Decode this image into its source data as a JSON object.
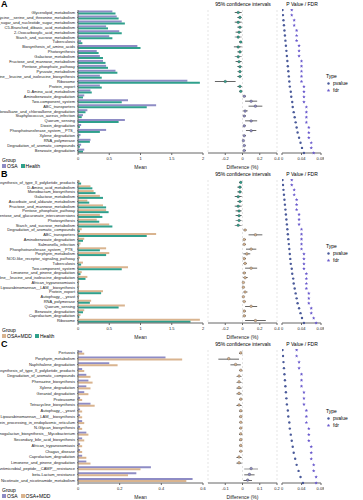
{
  "chart_data": [
    {
      "type": "bar",
      "orientation": "horizontal",
      "title": "A",
      "categories": [
        "Glycerolipid_metabolism",
        "Glycine__serine_and_threonine_metabolism",
        "Amino_sugar_and_nucleotide_sugar_metabolism",
        "C5-Branched_dibasic_acid_metabolism",
        "2-Oxocarboxylic_acid_metabolism",
        "Starch_and_sucrose_metabolism",
        "Tuberculosis",
        "Biosynthesis_of_amino_acids",
        "Photosynthesis",
        "Galactose_metabolism",
        "Fructose_and_mannose_metabolism",
        "Pentose_phosphate_pathway",
        "Pyruvate_metabolism",
        "Valine__leucine_and_isoleucine_biosynthesis",
        "Ribosome",
        "Protein_export",
        "D-Amino_acid_metabolism",
        "Aminobenzoate_degradation",
        "Two-component_system",
        "ABC_transporters",
        "Chloroalkane_and_chloroalkene_degradation",
        "Staphylococcus_aureus_infection",
        "Quorum_sensing",
        "Dioxin_degradation",
        "Phosphotransferase_system__PTS_",
        "Xylene_degradation",
        "RNA_polymerase",
        "Degradation_of_aromatic_compounds",
        "Benzoate_degradation"
      ],
      "series": [
        {
          "name": "OSA",
          "color": "#8e8cc5",
          "values": [
            0.55,
            0.62,
            0.7,
            0.45,
            0.66,
            0.5,
            0.05,
            0.95,
            0.3,
            0.35,
            0.4,
            0.45,
            0.6,
            0.35,
            1.75,
            0.35,
            0.2,
            0.1,
            0.8,
            1.25,
            0.15,
            0.08,
            0.75,
            0.05,
            0.45,
            0.04,
            0.2,
            0.05,
            0.1
          ]
        },
        {
          "name": "Health",
          "color": "#2fa08c",
          "values": [
            0.6,
            0.65,
            0.75,
            0.48,
            0.7,
            0.55,
            0.07,
            1.0,
            0.33,
            0.4,
            0.44,
            0.48,
            0.63,
            0.38,
            1.95,
            0.38,
            0.22,
            0.08,
            0.7,
            1.1,
            0.12,
            0.06,
            0.65,
            0.03,
            0.35,
            0.02,
            0.19,
            0.03,
            0.08
          ]
        }
      ],
      "xlabel": "Mean",
      "xlim": [
        0,
        2
      ],
      "xticks": [
        0,
        0.5,
        1,
        1.5,
        2
      ],
      "legend_title": "Group",
      "legend": "lower left",
      "ci_plot": {
        "type": "scatter",
        "title": "95% confidence intervals",
        "xlabel": "Difference (%)",
        "xlim": [
          -0.4,
          0.4
        ],
        "xticks": [
          -0.4,
          -0.2,
          0,
          0.2,
          0.4
        ],
        "grid": true,
        "values": [
          -0.05,
          -0.03,
          -0.05,
          -0.03,
          -0.04,
          -0.05,
          -0.02,
          -0.05,
          -0.03,
          -0.05,
          -0.04,
          -0.03,
          -0.03,
          -0.03,
          -0.2,
          -0.03,
          -0.02,
          0.02,
          0.1,
          0.15,
          0.03,
          0.02,
          0.1,
          0.02,
          0.1,
          0.02,
          0.01,
          0.02,
          0.02
        ],
        "ci_low": [
          -0.09,
          -0.06,
          -0.09,
          -0.06,
          -0.08,
          -0.09,
          -0.04,
          -0.1,
          -0.06,
          -0.09,
          -0.08,
          -0.06,
          -0.06,
          -0.06,
          -0.32,
          -0.06,
          -0.04,
          0.01,
          0.03,
          0.07,
          0.01,
          0.01,
          0.03,
          0.01,
          0.04,
          0.01,
          0.005,
          0.01,
          0.01
        ],
        "ci_high": [
          -0.01,
          -0.01,
          -0.01,
          -0.01,
          -0.01,
          -0.01,
          -0.01,
          -0.01,
          -0.01,
          -0.01,
          -0.01,
          -0.01,
          -0.01,
          -0.01,
          -0.08,
          -0.01,
          -0.01,
          0.04,
          0.17,
          0.23,
          0.06,
          0.04,
          0.17,
          0.04,
          0.16,
          0.04,
          0.02,
          0.04,
          0.04
        ]
      },
      "p_plot": {
        "type": "scatter",
        "title": "P Value / FDR",
        "xlim": [
          0,
          0.08
        ],
        "xticks": [
          0,
          0.04,
          0.08
        ],
        "legend_title": "Type",
        "series": [
          {
            "name": "pvalue",
            "color": "#4a5a9a",
            "marker": "circle",
            "values": [
              0.001,
              0.002,
              0.003,
              0.004,
              0.005,
              0.006,
              0.007,
              0.008,
              0.009,
              0.01,
              0.011,
              0.012,
              0.013,
              0.014,
              0.015,
              0.016,
              0.018,
              0.019,
              0.021,
              0.022,
              0.024,
              0.026,
              0.028,
              0.03,
              0.032,
              0.035,
              0.038,
              0.041,
              0.045
            ]
          },
          {
            "name": "fdr",
            "color": "#6a5acd",
            "marker": "star",
            "values": [
              0.02,
              0.02,
              0.025,
              0.025,
              0.03,
              0.03,
              0.03,
              0.035,
              0.035,
              0.035,
              0.04,
              0.04,
              0.04,
              0.04,
              0.04,
              0.045,
              0.045,
              0.045,
              0.045,
              0.05,
              0.05,
              0.05,
              0.05,
              0.055,
              0.055,
              0.055,
              0.06,
              0.06,
              0.065
            ]
          }
        ]
      }
    },
    {
      "type": "bar",
      "orientation": "horizontal",
      "title": "B",
      "categories": [
        "Biosynthesis_of_type_II_polyketide_products",
        "D-Amino_acid_metabolism",
        "Monobactam_biosynthesis",
        "Galactose_metabolism",
        "Ascorbate_and_aldarate_metabolism",
        "Fructose_and_mannose_metabolism",
        "Pentose_phosphate_pathway",
        "Pentose_and_glucuronate_interconversions",
        "Photosynthesis",
        "Starch_and_sucrose_metabolism",
        "Degradation_of_aromatic_compounds",
        "ABC_transporters",
        "Aminobenzoate_degradation",
        "Salmonella_infection",
        "Phosphotransferase_system__PTS_",
        "Porphyrin_metabolism",
        "NOD-like_receptor_signaling_pathway",
        "Tuberculosis",
        "Two-component_system",
        "Limonene_and_pinene_degradation",
        "Valine__leucine_and_isoleucine_degradation",
        "African_trypanosomiasis",
        "Lipoarabinomannan__LAM__biosynthesis",
        "Protein_export",
        "Autophagy_-_yeast",
        "RNA_polymerase",
        "Quorum_sensing",
        "Benzoate_degradation",
        "Caprolactam_degradation",
        "Ribosome"
      ],
      "series": [
        {
          "name": "OSA+MDD",
          "color": "#d9b48f",
          "values": [
            0.03,
            0.2,
            0.25,
            0.35,
            0.15,
            0.4,
            0.45,
            0.35,
            0.3,
            0.5,
            0.06,
            1.25,
            0.1,
            0.04,
            0.45,
            0.5,
            0.03,
            0.08,
            0.8,
            0.06,
            0.15,
            0.02,
            0.02,
            0.4,
            0.02,
            0.21,
            0.75,
            0.1,
            0.04,
            1.95
          ]
        },
        {
          "name": "Health",
          "color": "#2fa08c",
          "values": [
            0.05,
            0.23,
            0.28,
            0.4,
            0.18,
            0.45,
            0.49,
            0.39,
            0.34,
            0.55,
            0.03,
            1.1,
            0.08,
            0.02,
            0.35,
            0.45,
            0.01,
            0.05,
            0.7,
            0.04,
            0.12,
            0.01,
            0.01,
            0.37,
            0.01,
            0.19,
            0.65,
            0.08,
            0.02,
            1.8
          ]
        }
      ],
      "xlabel": "Mean",
      "xlim": [
        0,
        2
      ],
      "xticks": [
        0,
        0.5,
        1,
        1.5,
        2
      ],
      "legend_title": "Group",
      "legend": "lower left",
      "ci_plot": {
        "type": "scatter",
        "title": "95% confidence intervals",
        "xlabel": "Difference (%)",
        "xlim": [
          -0.4,
          0.4
        ],
        "xticks": [
          -0.4,
          -0.2,
          0,
          0.2,
          0.4
        ],
        "grid": true,
        "values": [
          -0.02,
          -0.03,
          -0.03,
          -0.05,
          -0.03,
          -0.05,
          -0.04,
          -0.04,
          -0.04,
          -0.05,
          0.03,
          0.15,
          0.02,
          0.02,
          0.1,
          0.05,
          0.02,
          0.03,
          0.1,
          0.02,
          0.03,
          0.01,
          0.01,
          0.03,
          0.01,
          0.02,
          0.1,
          0.02,
          0.02,
          0.15
        ],
        "ci_low": [
          -0.04,
          -0.06,
          -0.06,
          -0.09,
          -0.06,
          -0.09,
          -0.08,
          -0.08,
          -0.08,
          -0.09,
          0.01,
          0.07,
          0.01,
          0.01,
          0.04,
          0.01,
          0.01,
          0.01,
          0.03,
          0.01,
          0.01,
          0.005,
          0.005,
          0.01,
          0.005,
          0.005,
          0.03,
          0.01,
          0.01,
          0.03
        ],
        "ci_high": [
          -0.01,
          -0.01,
          -0.01,
          -0.01,
          -0.01,
          -0.01,
          -0.01,
          -0.01,
          -0.01,
          -0.01,
          0.05,
          0.23,
          0.04,
          0.04,
          0.16,
          0.09,
          0.04,
          0.05,
          0.17,
          0.04,
          0.06,
          0.02,
          0.02,
          0.06,
          0.02,
          0.04,
          0.17,
          0.04,
          0.04,
          0.27
        ]
      },
      "p_plot": {
        "type": "scatter",
        "title": "P Value / FDR",
        "xlim": [
          0,
          0.08
        ],
        "xticks": [
          0,
          0.04,
          0.08
        ],
        "legend_title": "Type",
        "series": [
          {
            "name": "pvalue",
            "color": "#4a5a9a",
            "marker": "circle",
            "values": [
              0.001,
              0.002,
              0.003,
              0.004,
              0.005,
              0.006,
              0.007,
              0.008,
              0.009,
              0.01,
              0.011,
              0.012,
              0.013,
              0.014,
              0.015,
              0.016,
              0.017,
              0.018,
              0.02,
              0.021,
              0.023,
              0.024,
              0.026,
              0.028,
              0.03,
              0.032,
              0.035,
              0.038,
              0.041,
              0.045
            ]
          },
          {
            "name": "fdr",
            "color": "#6a5acd",
            "marker": "star",
            "values": [
              0.02,
              0.02,
              0.025,
              0.025,
              0.03,
              0.03,
              0.03,
              0.035,
              0.035,
              0.035,
              0.04,
              0.04,
              0.04,
              0.04,
              0.04,
              0.045,
              0.045,
              0.045,
              0.045,
              0.05,
              0.05,
              0.05,
              0.05,
              0.055,
              0.055,
              0.055,
              0.06,
              0.06,
              0.065,
              0.07
            ]
          }
        ]
      }
    },
    {
      "type": "bar",
      "orientation": "horizontal",
      "title": "C",
      "categories": [
        "Pertussis",
        "Porphyrin_metabolism",
        "Naphthalene_degradation",
        "Biosynthesis_of_type_II_polyketide_products",
        "Degradation_of_aromatic_compounds",
        "Phenazine_biosynthesis",
        "Xylene_degradation",
        "Geraniol_degradation",
        "Proteasome",
        "Tetracycline_biosynthesis",
        "Autophagy_-_yeast",
        "Lipoarabinomannan__LAM__biosynthesis",
        "Protein_processing_in_endoplasmic_reticulum",
        "N-Glycan_biosynthesis",
        "Arabinogalactan_biosynthesis__Mycobacterium",
        "Secondary_bile_acid_biosynthesis",
        "African_trypanosomiasis",
        "Chagas_disease",
        "Caprolactam_degradation",
        "Limonene_and_pinene_degradation",
        "Cationic_antimicrobial_peptide__CAMP__resistance",
        "beta-Lactam_resistance",
        "Nicotinate_and_nicotinamide_metabolism"
      ],
      "series": [
        {
          "name": "OSA",
          "color": "#8e8cc5",
          "values": [
            0.02,
            0.42,
            0.15,
            0.02,
            0.04,
            0.05,
            0.04,
            0.03,
            0.01,
            0.06,
            0.01,
            0.01,
            0.02,
            0.01,
            0.04,
            0.02,
            0.01,
            0.01,
            0.02,
            0.04,
            0.35,
            0.28,
            0.55
          ]
        },
        {
          "name": "OSA+MDD",
          "color": "#d9b48f",
          "values": [
            0.03,
            0.5,
            0.19,
            0.03,
            0.06,
            0.07,
            0.06,
            0.05,
            0.02,
            0.08,
            0.02,
            0.02,
            0.03,
            0.02,
            0.05,
            0.03,
            0.02,
            0.02,
            0.04,
            0.06,
            0.3,
            0.24,
            0.52
          ]
        }
      ],
      "xlabel": "Mean",
      "xlim": [
        0,
        0.6
      ],
      "xticks": [
        0,
        0.2,
        0.4,
        0.6
      ],
      "legend_title": "Group",
      "legend": "lower left",
      "ci_plot": {
        "type": "scatter",
        "title": "95% confidence intervals",
        "xlabel": "Difference (%)",
        "xlim": [
          -0.2,
          0.2
        ],
        "xticks": [
          -0.2,
          -0.1,
          0,
          0.1,
          0.2
        ],
        "grid": true,
        "values": [
          -0.01,
          -0.08,
          -0.04,
          -0.01,
          -0.02,
          -0.02,
          -0.02,
          -0.02,
          -0.01,
          -0.02,
          -0.01,
          -0.01,
          -0.01,
          -0.01,
          -0.01,
          -0.01,
          -0.01,
          -0.01,
          -0.02,
          -0.02,
          0.05,
          0.04,
          0.03
        ],
        "ci_low": [
          -0.02,
          -0.14,
          -0.07,
          -0.02,
          -0.035,
          -0.035,
          -0.035,
          -0.035,
          -0.02,
          -0.035,
          -0.02,
          -0.02,
          -0.02,
          -0.02,
          -0.02,
          -0.02,
          -0.02,
          -0.02,
          -0.035,
          -0.035,
          0.01,
          0.01,
          0.005
        ],
        "ci_high": [
          -0.002,
          -0.02,
          -0.01,
          -0.002,
          -0.005,
          -0.005,
          -0.005,
          -0.005,
          -0.002,
          -0.005,
          -0.002,
          -0.002,
          -0.002,
          -0.002,
          -0.002,
          -0.002,
          -0.002,
          -0.002,
          -0.005,
          -0.005,
          0.09,
          0.07,
          0.055
        ]
      },
      "p_plot": {
        "type": "scatter",
        "title": "P Value / FDR",
        "xlim": [
          0,
          0.08
        ],
        "xticks": [
          0,
          0.04,
          0.08
        ],
        "legend_title": "Type",
        "series": [
          {
            "name": "pvalue",
            "color": "#4a5a9a",
            "marker": "circle",
            "values": [
              0.001,
              0.002,
              0.003,
              0.004,
              0.005,
              0.006,
              0.007,
              0.008,
              0.009,
              0.01,
              0.012,
              0.013,
              0.015,
              0.016,
              0.018,
              0.02,
              0.022,
              0.024,
              0.027,
              0.03,
              0.034,
              0.038,
              0.043
            ]
          },
          {
            "name": "fdr",
            "color": "#6a5acd",
            "marker": "star",
            "values": [
              0.03,
              0.03,
              0.035,
              0.035,
              0.04,
              0.04,
              0.04,
              0.045,
              0.045,
              0.045,
              0.05,
              0.05,
              0.05,
              0.055,
              0.055,
              0.055,
              0.06,
              0.06,
              0.06,
              0.065,
              0.065,
              0.07,
              0.07
            ]
          }
        ]
      }
    }
  ]
}
